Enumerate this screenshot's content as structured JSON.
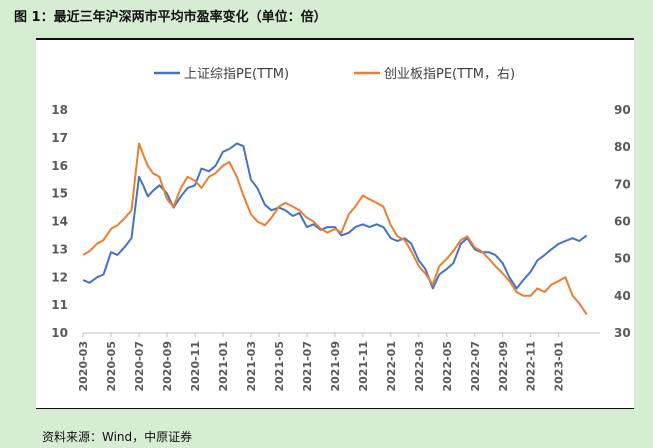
{
  "header": {
    "title": "图 1：最近三年沪深两市平均市盈率变化（单位：倍）"
  },
  "footer": {
    "source": "资料来源：Wind，中原证券"
  },
  "colors": {
    "series_a": "#4472c4",
    "series_b": "#ed7d31",
    "axis": "#bfbfbf"
  },
  "chart_data": {
    "type": "line",
    "title": "",
    "legend_position": "top",
    "grid": false,
    "x_ticks": [
      "2020-03",
      "2020-05",
      "2020-07",
      "2020-09",
      "2020-11",
      "2021-01",
      "2021-03",
      "2021-05",
      "2021-07",
      "2021-09",
      "2021-11",
      "2022-01",
      "2022-03",
      "2022-05",
      "2022-07",
      "2022-09",
      "2022-11",
      "2023-01"
    ],
    "x_range": [
      "2020-03",
      "2023-03"
    ],
    "y_left": {
      "min": 10,
      "max": 18,
      "step": 1,
      "ticks": [
        "10",
        "11",
        "12",
        "13",
        "14",
        "15",
        "16",
        "17",
        "18"
      ]
    },
    "y_right": {
      "min": 30,
      "max": 90,
      "step": 10,
      "ticks": [
        "30",
        "40",
        "50",
        "60",
        "70",
        "80",
        "90"
      ]
    },
    "series": [
      {
        "name": "上证综指PE(TTM)",
        "axis": "left",
        "points": [
          [
            "2020-03",
            11.9
          ],
          [
            "2020-03-15",
            11.8
          ],
          [
            "2020-04",
            12.0
          ],
          [
            "2020-04-15",
            12.1
          ],
          [
            "2020-05",
            12.9
          ],
          [
            "2020-05-15",
            12.8
          ],
          [
            "2020-06",
            13.1
          ],
          [
            "2020-06-15",
            13.4
          ],
          [
            "2020-07",
            15.6
          ],
          [
            "2020-07-10",
            15.3
          ],
          [
            "2020-07-20",
            14.9
          ],
          [
            "2020-08",
            15.1
          ],
          [
            "2020-08-15",
            15.3
          ],
          [
            "2020-09",
            15.0
          ],
          [
            "2020-09-15",
            14.5
          ],
          [
            "2020-10",
            14.9
          ],
          [
            "2020-10-15",
            15.2
          ],
          [
            "2020-11",
            15.3
          ],
          [
            "2020-11-15",
            15.9
          ],
          [
            "2020-12",
            15.8
          ],
          [
            "2020-12-15",
            16.0
          ],
          [
            "2021-01",
            16.5
          ],
          [
            "2021-01-15",
            16.6
          ],
          [
            "2021-02",
            16.8
          ],
          [
            "2021-02-15",
            16.7
          ],
          [
            "2021-03",
            15.5
          ],
          [
            "2021-03-15",
            15.2
          ],
          [
            "2021-04",
            14.6
          ],
          [
            "2021-04-15",
            14.4
          ],
          [
            "2021-05",
            14.5
          ],
          [
            "2021-05-15",
            14.4
          ],
          [
            "2021-06",
            14.2
          ],
          [
            "2021-06-15",
            14.3
          ],
          [
            "2021-07",
            13.8
          ],
          [
            "2021-07-15",
            13.9
          ],
          [
            "2021-08",
            13.7
          ],
          [
            "2021-08-15",
            13.8
          ],
          [
            "2021-09",
            13.8
          ],
          [
            "2021-09-15",
            13.5
          ],
          [
            "2021-10",
            13.6
          ],
          [
            "2021-10-15",
            13.8
          ],
          [
            "2021-11",
            13.9
          ],
          [
            "2021-11-15",
            13.8
          ],
          [
            "2021-12",
            13.9
          ],
          [
            "2021-12-15",
            13.8
          ],
          [
            "2022-01",
            13.4
          ],
          [
            "2022-01-15",
            13.3
          ],
          [
            "2022-02",
            13.4
          ],
          [
            "2022-02-15",
            13.2
          ],
          [
            "2022-03",
            12.6
          ],
          [
            "2022-03-15",
            12.3
          ],
          [
            "2022-04",
            11.6
          ],
          [
            "2022-04-15",
            12.1
          ],
          [
            "2022-05",
            12.3
          ],
          [
            "2022-05-15",
            12.5
          ],
          [
            "2022-06",
            13.2
          ],
          [
            "2022-06-15",
            13.4
          ],
          [
            "2022-07",
            13.0
          ],
          [
            "2022-07-15",
            12.9
          ],
          [
            "2022-08",
            12.9
          ],
          [
            "2022-08-15",
            12.8
          ],
          [
            "2022-09",
            12.5
          ],
          [
            "2022-09-15",
            12.0
          ],
          [
            "2022-10",
            11.6
          ],
          [
            "2022-10-15",
            11.9
          ],
          [
            "2022-11",
            12.2
          ],
          [
            "2022-11-15",
            12.6
          ],
          [
            "2022-12",
            12.8
          ],
          [
            "2022-12-15",
            13.0
          ],
          [
            "2023-01",
            13.2
          ],
          [
            "2023-01-15",
            13.3
          ],
          [
            "2023-02",
            13.4
          ],
          [
            "2023-02-15",
            13.3
          ],
          [
            "2023-03",
            13.5
          ]
        ]
      },
      {
        "name": "创业板指PE(TTM，右)",
        "axis": "right",
        "points": [
          [
            "2020-03",
            51
          ],
          [
            "2020-03-15",
            52
          ],
          [
            "2020-04",
            54
          ],
          [
            "2020-04-15",
            55
          ],
          [
            "2020-05",
            58
          ],
          [
            "2020-05-15",
            59
          ],
          [
            "2020-06",
            61
          ],
          [
            "2020-06-15",
            63
          ],
          [
            "2020-07",
            81
          ],
          [
            "2020-07-10",
            78
          ],
          [
            "2020-07-20",
            75
          ],
          [
            "2020-08",
            73
          ],
          [
            "2020-08-15",
            72
          ],
          [
            "2020-09",
            66
          ],
          [
            "2020-09-15",
            64
          ],
          [
            "2020-10",
            69
          ],
          [
            "2020-10-15",
            72
          ],
          [
            "2020-11",
            71
          ],
          [
            "2020-11-15",
            69
          ],
          [
            "2020-12",
            72
          ],
          [
            "2020-12-15",
            73
          ],
          [
            "2021-01",
            75
          ],
          [
            "2021-01-15",
            76
          ],
          [
            "2021-02",
            72
          ],
          [
            "2021-02-15",
            67
          ],
          [
            "2021-03",
            62
          ],
          [
            "2021-03-15",
            60
          ],
          [
            "2021-04",
            59
          ],
          [
            "2021-04-15",
            61
          ],
          [
            "2021-05",
            64
          ],
          [
            "2021-05-15",
            65
          ],
          [
            "2021-06",
            64
          ],
          [
            "2021-06-15",
            63
          ],
          [
            "2021-07",
            61
          ],
          [
            "2021-07-15",
            60
          ],
          [
            "2021-08",
            58
          ],
          [
            "2021-08-15",
            57
          ],
          [
            "2021-09",
            58
          ],
          [
            "2021-09-15",
            57
          ],
          [
            "2021-10",
            62
          ],
          [
            "2021-10-15",
            64
          ],
          [
            "2021-11",
            67
          ],
          [
            "2021-11-15",
            66
          ],
          [
            "2021-12",
            65
          ],
          [
            "2021-12-15",
            64
          ],
          [
            "2022-01",
            59
          ],
          [
            "2022-01-15",
            56
          ],
          [
            "2022-02",
            55
          ],
          [
            "2022-02-15",
            52
          ],
          [
            "2022-03",
            48
          ],
          [
            "2022-03-15",
            46
          ],
          [
            "2022-04",
            43
          ],
          [
            "2022-04-15",
            48
          ],
          [
            "2022-05",
            50
          ],
          [
            "2022-05-15",
            52
          ],
          [
            "2022-06",
            55
          ],
          [
            "2022-06-15",
            56
          ],
          [
            "2022-07",
            53
          ],
          [
            "2022-07-15",
            52
          ],
          [
            "2022-08",
            50
          ],
          [
            "2022-08-15",
            48
          ],
          [
            "2022-09",
            46
          ],
          [
            "2022-09-15",
            44
          ],
          [
            "2022-10",
            41
          ],
          [
            "2022-10-15",
            40
          ],
          [
            "2022-11",
            40
          ],
          [
            "2022-11-15",
            42
          ],
          [
            "2022-12",
            41
          ],
          [
            "2022-12-15",
            43
          ],
          [
            "2023-01",
            44
          ],
          [
            "2023-01-15",
            45
          ],
          [
            "2023-02",
            40
          ],
          [
            "2023-02-15",
            38
          ],
          [
            "2023-03",
            35
          ]
        ]
      }
    ]
  }
}
